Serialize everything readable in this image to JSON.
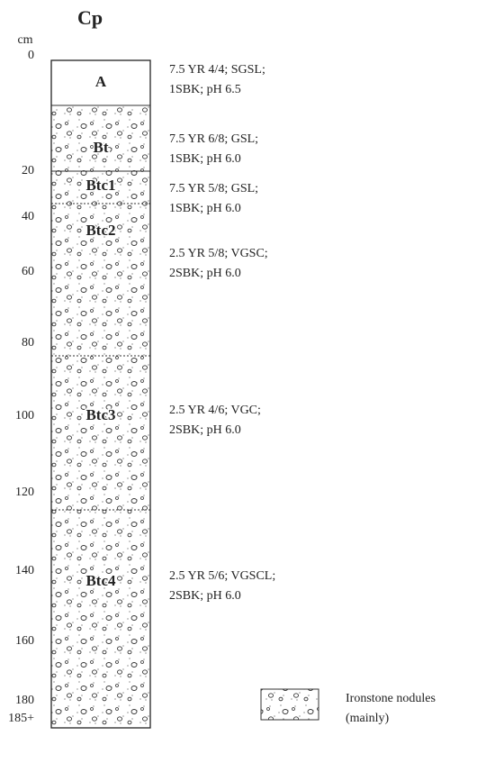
{
  "title": "Cp",
  "depth_unit": "cm",
  "depth_labels": [
    "0",
    "20",
    "40",
    "60",
    "80",
    "100",
    "120",
    "140",
    "160",
    "180",
    "185+"
  ],
  "horizons": [
    {
      "name": "A",
      "description": [
        "7.5 YR 4/4; SGSL;",
        "1SBK; pH 6.5"
      ]
    },
    {
      "name": "Bt",
      "description": [
        "7.5 YR 6/8; GSL;",
        "1SBK; pH 6.0"
      ]
    },
    {
      "name": "Btc1",
      "description": [
        "7.5 YR 5/8; GSL;",
        "1SBK; pH 6.0"
      ]
    },
    {
      "name": "Btc2",
      "description": [
        "2.5 YR 5/8; VGSC;",
        "2SBK; pH 6.0"
      ]
    },
    {
      "name": "Btc3",
      "description": [
        "2.5 YR 4/6; VGC;",
        "2SBK; pH 6.0"
      ]
    },
    {
      "name": "Btc4",
      "description": [
        "2.5 YR 5/6; VGSCL;",
        "2SBK; pH 6.0"
      ]
    }
  ],
  "legend": [
    "Ironstone nodules",
    "(mainly)"
  ]
}
